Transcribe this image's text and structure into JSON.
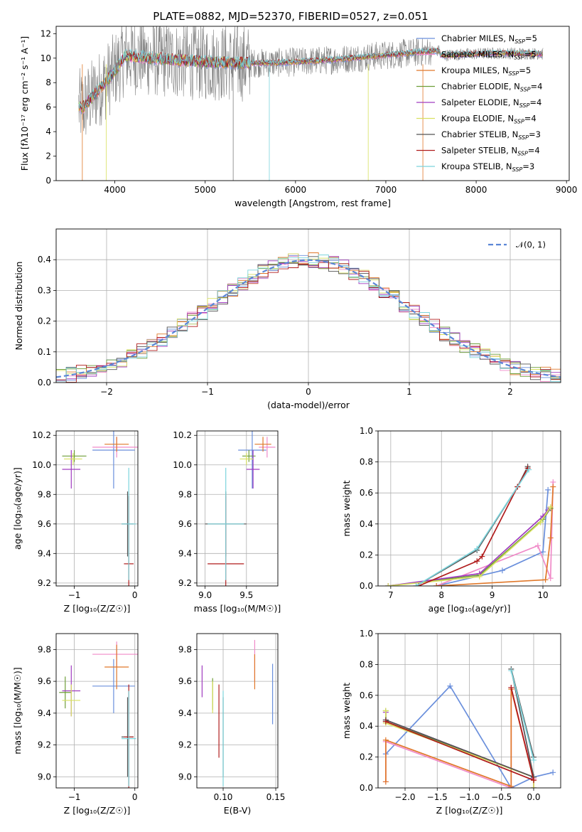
{
  "chart_data": [
    {
      "type": "line",
      "panel": "spectrum",
      "title": "PLATE=0882, MJD=52370, FIBERID=0527, z=0.051",
      "xlabel": "wavelength [Angstrom, rest frame]",
      "ylabel": "Flux [fλ10⁻¹⁷ erg cm⁻² s⁻¹ A⁻¹]",
      "xlim": [
        3350,
        9030
      ],
      "ylim": [
        0,
        12.6
      ],
      "xticks": [
        4000,
        5000,
        6000,
        7000,
        8000,
        9000
      ],
      "yticks": [
        0,
        2,
        4,
        6,
        8,
        10,
        12
      ],
      "grid": false,
      "legend_position": "top-right",
      "data_range": [
        3600,
        8740
      ],
      "legend": [
        {
          "name": "Chabrier MILES, N_SSP=5",
          "prefix": "Chabrier MILES, N",
          "sub": "SSP",
          "suffix": "=5",
          "color": "#6a8fdc"
        },
        {
          "name": "Salpeter MILES, N_SSP=5",
          "prefix": "Salpeter MILES, N",
          "sub": "SSP",
          "suffix": "=5",
          "color": "#f08ac8"
        },
        {
          "name": "Kroupa MILES, N_SSP=5",
          "prefix": "Kroupa MILES, N",
          "sub": "SSP",
          "suffix": "=5",
          "color": "#e0782a"
        },
        {
          "name": "Chabrier ELODIE, N_SSP=4",
          "prefix": "Chabrier ELODIE, N",
          "sub": "SSP",
          "suffix": "=4",
          "color": "#6e9e38"
        },
        {
          "name": "Salpeter ELODIE, N_SSP=4",
          "prefix": "Salpeter ELODIE, N",
          "sub": "SSP",
          "suffix": "=4",
          "color": "#a03cc0"
        },
        {
          "name": "Kroupa ELODIE, N_SSP=4",
          "prefix": "Kroupa ELODIE, N",
          "sub": "SSP",
          "suffix": "=4",
          "color": "#d8e060"
        },
        {
          "name": "Chabrier STELIB, N_SSP=3",
          "prefix": "Chabrier STELIB, N",
          "sub": "SSP",
          "suffix": "=3",
          "color": "#555555"
        },
        {
          "name": "Salpeter STELIB, N_SSP=4",
          "prefix": "Salpeter STELIB, N",
          "sub": "SSP",
          "suffix": "=4",
          "color": "#b01c1c"
        },
        {
          "name": "Kroupa STELIB, N_SSP=3",
          "prefix": "Kroupa STELIB, N",
          "sub": "SSP",
          "suffix": "=3",
          "color": "#7cd4dc"
        }
      ]
    },
    {
      "type": "histogram",
      "panel": "residuals",
      "xlabel": "(data-model)/error",
      "ylabel": "Normed distribution",
      "xlim": [
        -2.5,
        2.5
      ],
      "ylim": [
        0,
        0.5
      ],
      "xticks": [
        -2,
        -1,
        0,
        1,
        2
      ],
      "yticks": [
        0.0,
        0.1,
        0.2,
        0.3,
        0.4
      ],
      "grid": true,
      "legend_position": "top-right",
      "reference_label": "𝒩(0, 1)",
      "reference_color": "#5b86d6",
      "bin_width": 0.1,
      "bin_start": -2.5
    },
    {
      "type": "errorbar",
      "panel": "age_vs_Z",
      "xlabel": "Z [log₁₀(Z/Z☉)]",
      "ylabel": "age  [log₁₀(age/yr)]",
      "xlim": [
        -1.3,
        0.05
      ],
      "ylim": [
        9.18,
        10.23
      ],
      "xticks": [
        -1,
        0
      ],
      "yticks": [
        9.2,
        9.4,
        9.6,
        9.8,
        10.0,
        10.2
      ],
      "grid": true,
      "points": [
        {
          "color": "#6a8fdc",
          "x": -0.35,
          "xerr": 0.35,
          "y": 10.1,
          "yerr": 0.26
        },
        {
          "color": "#f08ac8",
          "x": -0.3,
          "xerr": 0.4,
          "y": 10.12,
          "yerr": 0.07
        },
        {
          "color": "#e0782a",
          "x": -0.3,
          "xerr": 0.2,
          "y": 10.14,
          "yerr": 0.05
        },
        {
          "color": "#6e9e38",
          "x": -1.0,
          "xerr": 0.2,
          "y": 10.06,
          "yerr": 0.04
        },
        {
          "color": "#a03cc0",
          "x": -1.05,
          "xerr": 0.15,
          "y": 9.97,
          "yerr": 0.13
        },
        {
          "color": "#d8e060",
          "x": -1.02,
          "xerr": 0.15,
          "y": 10.04,
          "yerr": 0.04
        },
        {
          "color": "#555555",
          "x": -0.12,
          "xerr": 0.1,
          "y": 9.6,
          "yerr": 0.22
        },
        {
          "color": "#b01c1c",
          "x": -0.1,
          "xerr": 0.08,
          "y": 9.33,
          "yerr": 0.46
        },
        {
          "color": "#7cd4dc",
          "x": -0.1,
          "xerr": 0.12,
          "y": 9.6,
          "yerr": 0.38
        }
      ]
    },
    {
      "type": "errorbar",
      "panel": "age_vs_mass",
      "xlabel": "mass [log₁₀(M/M☉)]",
      "ylabel": "",
      "xlim": [
        8.9,
        9.88
      ],
      "ylim": [
        9.18,
        10.23
      ],
      "xticks": [
        9.0,
        9.5
      ],
      "yticks": [
        9.2,
        9.4,
        9.6,
        9.8,
        10.0,
        10.2
      ],
      "grid": true,
      "points": [
        {
          "color": "#6a8fdc",
          "x": 9.57,
          "xerr": 0.17,
          "y": 10.1,
          "yerr": 0.26
        },
        {
          "color": "#f08ac8",
          "x": 9.75,
          "xerr": 0.1,
          "y": 10.12,
          "yerr": 0.07
        },
        {
          "color": "#e0782a",
          "x": 9.7,
          "xerr": 0.1,
          "y": 10.14,
          "yerr": 0.05
        },
        {
          "color": "#6e9e38",
          "x": 9.53,
          "xerr": 0.08,
          "y": 10.06,
          "yerr": 0.04
        },
        {
          "color": "#a03cc0",
          "x": 9.58,
          "xerr": 0.08,
          "y": 9.97,
          "yerr": 0.13
        },
        {
          "color": "#d8e060",
          "x": 9.5,
          "xerr": 0.08,
          "y": 10.04,
          "yerr": 0.04
        },
        {
          "color": "#555555",
          "x": 9.25,
          "xerr": 0.25,
          "y": 9.6,
          "yerr": 0.22
        },
        {
          "color": "#b01c1c",
          "x": 9.25,
          "xerr": 0.22,
          "y": 9.33,
          "yerr": 0.46
        },
        {
          "color": "#7cd4dc",
          "x": 9.25,
          "xerr": 0.22,
          "y": 9.6,
          "yerr": 0.38
        }
      ]
    },
    {
      "type": "line",
      "panel": "mass_weight_vs_age",
      "xlabel": "age  [log₁₀(age/yr)]",
      "ylabel": "mass weight",
      "xlim": [
        6.75,
        10.35
      ],
      "ylim": [
        0,
        1.0
      ],
      "xticks": [
        7,
        8,
        9,
        10
      ],
      "yticks": [
        0.0,
        0.2,
        0.4,
        0.6,
        0.8,
        1.0
      ],
      "grid": true,
      "series": [
        {
          "color": "#6a8fdc",
          "x": [
            7.9,
            9.2,
            10.0,
            10.1
          ],
          "y": [
            0.0,
            0.1,
            0.22,
            0.62
          ]
        },
        {
          "color": "#f08ac8",
          "x": [
            7.9,
            9.9,
            10.15,
            10.2
          ],
          "y": [
            0.0,
            0.26,
            0.05,
            0.67
          ]
        },
        {
          "color": "#e0782a",
          "x": [
            7.9,
            10.05,
            10.15,
            10.2
          ],
          "y": [
            0.0,
            0.04,
            0.31,
            0.64
          ]
        },
        {
          "color": "#6e9e38",
          "x": [
            6.95,
            8.75,
            10.0,
            10.15
          ],
          "y": [
            0.0,
            0.07,
            0.43,
            0.5
          ]
        },
        {
          "color": "#a03cc0",
          "x": [
            6.95,
            8.75,
            10.0,
            10.1
          ],
          "y": [
            0.0,
            0.08,
            0.45,
            0.49
          ]
        },
        {
          "color": "#d8e060",
          "x": [
            6.95,
            8.75,
            9.95,
            10.15
          ],
          "y": [
            0.0,
            0.06,
            0.41,
            0.51
          ]
        },
        {
          "color": "#555555",
          "x": [
            7.5,
            8.7,
            9.5,
            9.7
          ],
          "y": [
            0.0,
            0.23,
            0.64,
            0.77
          ]
        },
        {
          "color": "#b01c1c",
          "x": [
            7.55,
            8.7,
            8.8,
            9.5,
            9.7
          ],
          "y": [
            0.0,
            0.16,
            0.19,
            0.64,
            0.76
          ]
        },
        {
          "color": "#7cd4dc",
          "x": [
            7.5,
            8.7,
            9.72
          ],
          "y": [
            0.0,
            0.24,
            0.75
          ]
        }
      ]
    },
    {
      "type": "errorbar",
      "panel": "mass_vs_Z",
      "xlabel": "Z [log₁₀(Z/Z☉)]",
      "ylabel": "mass [log₁₀(M/M☉)]",
      "xlim": [
        -1.3,
        0.05
      ],
      "ylim": [
        8.93,
        9.9
      ],
      "xticks": [
        -1,
        0
      ],
      "yticks": [
        9.0,
        9.2,
        9.4,
        9.6,
        9.8
      ],
      "grid": true,
      "points": [
        {
          "color": "#6a8fdc",
          "x": -0.35,
          "xerr": 0.35,
          "y": 9.57,
          "yerr": 0.17
        },
        {
          "color": "#f08ac8",
          "x": -0.3,
          "xerr": 0.4,
          "y": 9.77,
          "yerr": 0.08
        },
        {
          "color": "#e0782a",
          "x": -0.3,
          "xerr": 0.2,
          "y": 9.69,
          "yerr": 0.14
        },
        {
          "color": "#6e9e38",
          "x": -1.15,
          "xerr": 0.1,
          "y": 9.53,
          "yerr": 0.1
        },
        {
          "color": "#a03cc0",
          "x": -1.05,
          "xerr": 0.15,
          "y": 9.54,
          "yerr": 0.16
        },
        {
          "color": "#d8e060",
          "x": -1.05,
          "xerr": 0.15,
          "y": 9.48,
          "yerr": 0.1
        },
        {
          "color": "#555555",
          "x": -0.12,
          "xerr": 0.1,
          "y": 9.25,
          "yerr": 0.25
        },
        {
          "color": "#b01c1c",
          "x": -0.1,
          "xerr": 0.08,
          "y": 9.25,
          "yerr": 0.33
        },
        {
          "color": "#7cd4dc",
          "x": -0.1,
          "xerr": 0.12,
          "y": 9.24,
          "yerr": 0.3
        }
      ]
    },
    {
      "type": "errorbar",
      "panel": "mass_vs_EBV",
      "xlabel": "E(B-V)",
      "ylabel": "",
      "xlim": [
        0.075,
        0.152
      ],
      "ylim": [
        8.93,
        9.9
      ],
      "xticks": [
        0.1,
        0.15
      ],
      "yticks": [
        9.0,
        9.2,
        9.4,
        9.6,
        9.8
      ],
      "grid": true,
      "points": [
        {
          "color": "#6a8fdc",
          "x": 0.147,
          "xerr": 0,
          "y": 9.52,
          "yerr": 0.19
        },
        {
          "color": "#f08ac8",
          "x": 0.13,
          "xerr": 0,
          "y": 9.73,
          "yerr": 0.13
        },
        {
          "color": "#e0782a",
          "x": 0.13,
          "xerr": 0,
          "y": 9.66,
          "yerr": 0.11
        },
        {
          "color": "#6e9e38",
          "x": 0.09,
          "xerr": 0,
          "y": 9.52,
          "yerr": 0.1
        },
        {
          "color": "#a03cc0",
          "x": 0.08,
          "xerr": 0,
          "y": 9.6,
          "yerr": 0.1
        },
        {
          "color": "#d8e060",
          "x": 0.09,
          "xerr": 0,
          "y": 9.5,
          "yerr": 0.1
        },
        {
          "color": "#555555",
          "x": 0.1,
          "xerr": 0,
          "y": 9.25,
          "yerr": 0.25
        },
        {
          "color": "#b01c1c",
          "x": 0.096,
          "xerr": 0,
          "y": 9.35,
          "yerr": 0.23
        },
        {
          "color": "#7cd4dc",
          "x": 0.1,
          "xerr": 0,
          "y": 9.24,
          "yerr": 0.3
        }
      ]
    },
    {
      "type": "line",
      "panel": "mass_weight_vs_Z",
      "xlabel": "Z [log₁₀(Z/Z☉)]",
      "ylabel": "mass weight",
      "xlim": [
        -2.42,
        0.42
      ],
      "ylim": [
        0,
        1.0
      ],
      "xticks": [
        -2.0,
        -1.5,
        -1.0,
        -0.5,
        0.0
      ],
      "yticks": [
        0.0,
        0.2,
        0.4,
        0.6,
        0.8,
        1.0
      ],
      "grid": true,
      "series": [
        {
          "color": "#6a8fdc",
          "x": [
            -2.3,
            -1.3,
            -0.35,
            0.0,
            0.3
          ],
          "y": [
            0.22,
            0.66,
            0.0,
            0.07,
            0.1
          ]
        },
        {
          "color": "#f08ac8",
          "x": [
            -2.3,
            -2.3,
            -0.35,
            -0.35,
            0.0
          ],
          "y": [
            0.04,
            0.3,
            0.0,
            0.65,
            0.06
          ]
        },
        {
          "color": "#e0782a",
          "x": [
            -2.3,
            -2.3,
            -0.35,
            -0.35,
            0.0
          ],
          "y": [
            0.04,
            0.31,
            0.01,
            0.64,
            0.05
          ]
        },
        {
          "color": "#6e9e38",
          "x": [
            -2.3,
            -2.3,
            0.0,
            0.0
          ],
          "y": [
            0.5,
            0.43,
            0.07,
            0.0
          ]
        },
        {
          "color": "#a03cc0",
          "x": [
            -2.3,
            -2.3,
            0.0,
            0.0
          ],
          "y": [
            0.49,
            0.44,
            0.07,
            0.0
          ]
        },
        {
          "color": "#d8e060",
          "x": [
            -2.3,
            -2.3,
            0.0,
            0.0
          ],
          "y": [
            0.5,
            0.42,
            0.07,
            0.0
          ]
        },
        {
          "color": "#555555",
          "x": [
            -2.3,
            0.0,
            -0.35,
            0.0
          ],
          "y": [
            0.44,
            0.07,
            0.77,
            0.2
          ]
        },
        {
          "color": "#b01c1c",
          "x": [
            -0.35,
            0.0,
            -2.3
          ],
          "y": [
            0.65,
            0.05,
            0.43
          ]
        },
        {
          "color": "#7cd4dc",
          "x": [
            -0.35,
            0.0
          ],
          "y": [
            0.76,
            0.18
          ]
        }
      ]
    }
  ]
}
